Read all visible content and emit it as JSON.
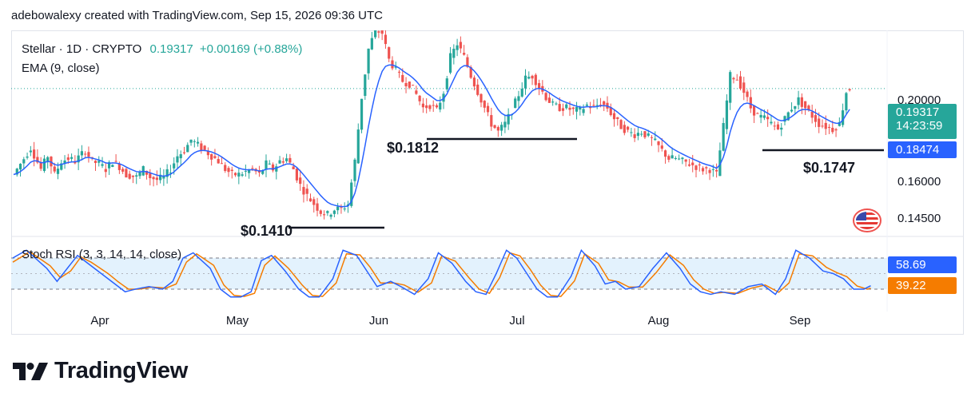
{
  "header": {
    "credit": "adebowalexy created with TradingView.com, Sep 15, 2026 09:36 UTC"
  },
  "legend": {
    "symbol": "Stellar · 1D · CRYPTO",
    "price": "0.19317",
    "change": "+0.00169 (+0.88%)",
    "ema": "EMA (9, close)",
    "stoch": "Stoch RSI (3, 3, 14, 14, close)"
  },
  "colors": {
    "up": "#26a69a",
    "down": "#ef5350",
    "ema": "#2962ff",
    "k_line": "#2962ff",
    "d_line": "#f57c00",
    "tag_ema": "#2962ff",
    "tag_price": "#26a69a",
    "tag_d": "#f57c00",
    "stoch_band": "#e3f2fd"
  },
  "icons": {
    "flag": "us-flag-icon",
    "logo": "tradingview-logo-icon"
  },
  "brand": {
    "name": "TradingView"
  },
  "chart_data": {
    "type": "candlestick",
    "x_labels": [
      "Apr",
      "May",
      "Jun",
      "Jul",
      "Aug",
      "Sep"
    ],
    "y_ticks": [
      "0.20000",
      "0.16000",
      "0.14500"
    ],
    "y_range": [
      0.139,
      0.215
    ],
    "price_tag": {
      "value": "0.19317",
      "countdown": "14:23:59"
    },
    "ema_tag": "0.18474",
    "annotations": [
      "$0.1410",
      "$0.1812",
      "$0.1747"
    ],
    "stoch": {
      "levels": [
        20,
        80
      ],
      "k_value": "58.69",
      "d_value": "39.22",
      "k_anchors": [
        [
          0,
          80
        ],
        [
          4,
          95
        ],
        [
          10,
          60
        ],
        [
          13,
          35
        ],
        [
          16,
          60
        ],
        [
          19,
          85
        ],
        [
          22,
          70
        ],
        [
          27,
          45
        ],
        [
          30,
          30
        ],
        [
          33,
          15
        ],
        [
          36,
          20
        ],
        [
          40,
          25
        ],
        [
          44,
          20
        ],
        [
          47,
          35
        ],
        [
          50,
          80
        ],
        [
          53,
          90
        ],
        [
          58,
          60
        ],
        [
          61,
          20
        ],
        [
          64,
          5
        ],
        [
          67,
          5
        ],
        [
          70,
          15
        ],
        [
          73,
          75
        ],
        [
          76,
          85
        ],
        [
          80,
          55
        ],
        [
          84,
          20
        ],
        [
          87,
          5
        ],
        [
          90,
          5
        ],
        [
          94,
          40
        ],
        [
          97,
          95
        ],
        [
          101,
          85
        ],
        [
          104,
          55
        ],
        [
          107,
          25
        ],
        [
          111,
          35
        ],
        [
          114,
          25
        ],
        [
          118,
          10
        ],
        [
          122,
          40
        ],
        [
          125,
          90
        ],
        [
          129,
          70
        ],
        [
          133,
          35
        ],
        [
          136,
          15
        ],
        [
          139,
          10
        ],
        [
          142,
          50
        ],
        [
          145,
          95
        ],
        [
          148,
          80
        ],
        [
          151,
          50
        ],
        [
          154,
          20
        ],
        [
          157,
          5
        ],
        [
          160,
          5
        ],
        [
          164,
          45
        ],
        [
          167,
          95
        ],
        [
          171,
          65
        ],
        [
          174,
          30
        ],
        [
          177,
          35
        ],
        [
          180,
          20
        ],
        [
          184,
          25
        ],
        [
          188,
          60
        ],
        [
          192,
          90
        ],
        [
          196,
          60
        ],
        [
          199,
          30
        ],
        [
          202,
          15
        ],
        [
          205,
          10
        ],
        [
          208,
          15
        ],
        [
          212,
          10
        ],
        [
          216,
          25
        ],
        [
          220,
          30
        ],
        [
          224,
          10
        ],
        [
          227,
          40
        ],
        [
          230,
          95
        ],
        [
          234,
          80
        ],
        [
          238,
          55
        ],
        [
          241,
          50
        ],
        [
          244,
          40
        ],
        [
          247,
          20
        ],
        [
          250,
          20
        ],
        [
          253,
          30
        ],
        [
          256,
          80
        ],
        [
          259,
          60
        ],
        [
          262,
          15
        ],
        [
          265,
          15
        ],
        [
          268,
          40
        ],
        [
          270,
          58.69
        ]
      ],
      "d_anchors": [
        [
          0,
          72
        ],
        [
          5,
          92
        ],
        [
          11,
          65
        ],
        [
          14,
          42
        ],
        [
          17,
          55
        ],
        [
          20,
          82
        ],
        [
          23,
          72
        ],
        [
          28,
          50
        ],
        [
          31,
          34
        ],
        [
          34,
          20
        ],
        [
          37,
          20
        ],
        [
          41,
          24
        ],
        [
          45,
          22
        ],
        [
          48,
          30
        ],
        [
          51,
          72
        ],
        [
          54,
          88
        ],
        [
          59,
          66
        ],
        [
          62,
          28
        ],
        [
          65,
          8
        ],
        [
          68,
          6
        ],
        [
          71,
          12
        ],
        [
          74,
          66
        ],
        [
          77,
          84
        ],
        [
          81,
          60
        ],
        [
          85,
          28
        ],
        [
          88,
          8
        ],
        [
          91,
          6
        ],
        [
          95,
          32
        ],
        [
          98,
          88
        ],
        [
          102,
          86
        ],
        [
          105,
          62
        ],
        [
          108,
          32
        ],
        [
          112,
          32
        ],
        [
          115,
          28
        ],
        [
          119,
          14
        ],
        [
          123,
          32
        ],
        [
          126,
          84
        ],
        [
          130,
          74
        ],
        [
          134,
          42
        ],
        [
          137,
          20
        ],
        [
          140,
          12
        ],
        [
          143,
          42
        ],
        [
          146,
          90
        ],
        [
          149,
          84
        ],
        [
          152,
          58
        ],
        [
          155,
          28
        ],
        [
          158,
          8
        ],
        [
          161,
          6
        ],
        [
          165,
          36
        ],
        [
          168,
          88
        ],
        [
          172,
          70
        ],
        [
          175,
          38
        ],
        [
          178,
          34
        ],
        [
          181,
          24
        ],
        [
          185,
          24
        ],
        [
          189,
          52
        ],
        [
          193,
          86
        ],
        [
          197,
          66
        ],
        [
          200,
          38
        ],
        [
          203,
          20
        ],
        [
          206,
          12
        ],
        [
          209,
          14
        ],
        [
          213,
          12
        ],
        [
          217,
          22
        ],
        [
          221,
          28
        ],
        [
          225,
          14
        ],
        [
          228,
          32
        ],
        [
          231,
          88
        ],
        [
          235,
          84
        ],
        [
          239,
          62
        ],
        [
          242,
          52
        ],
        [
          245,
          44
        ],
        [
          248,
          26
        ],
        [
          251,
          20
        ],
        [
          254,
          26
        ],
        [
          257,
          70
        ],
        [
          260,
          66
        ],
        [
          263,
          26
        ],
        [
          266,
          16
        ],
        [
          268,
          28
        ],
        [
          270,
          39.22
        ]
      ]
    },
    "close_anchors": [
      [
        0,
        0.161
      ],
      [
        2,
        0.165
      ],
      [
        5,
        0.171
      ],
      [
        8,
        0.163
      ],
      [
        10,
        0.168
      ],
      [
        12,
        0.161
      ],
      [
        14,
        0.166
      ],
      [
        16,
        0.167
      ],
      [
        18,
        0.166
      ],
      [
        21,
        0.17
      ],
      [
        23,
        0.166
      ],
      [
        25,
        0.165
      ],
      [
        27,
        0.163
      ],
      [
        29,
        0.166
      ],
      [
        31,
        0.164
      ],
      [
        33,
        0.161
      ],
      [
        36,
        0.16
      ],
      [
        38,
        0.163
      ],
      [
        40,
        0.16
      ],
      [
        42,
        0.159
      ],
      [
        44,
        0.16
      ],
      [
        46,
        0.163
      ],
      [
        48,
        0.168
      ],
      [
        50,
        0.17
      ],
      [
        52,
        0.174
      ],
      [
        54,
        0.172
      ],
      [
        56,
        0.17
      ],
      [
        58,
        0.168
      ],
      [
        60,
        0.166
      ],
      [
        62,
        0.163
      ],
      [
        64,
        0.161
      ],
      [
        66,
        0.161
      ],
      [
        68,
        0.162
      ],
      [
        70,
        0.163
      ],
      [
        72,
        0.161
      ],
      [
        74,
        0.165
      ],
      [
        76,
        0.163
      ],
      [
        78,
        0.166
      ],
      [
        80,
        0.167
      ],
      [
        82,
        0.163
      ],
      [
        84,
        0.157
      ],
      [
        86,
        0.153
      ],
      [
        88,
        0.15
      ],
      [
        90,
        0.147
      ],
      [
        92,
        0.146
      ],
      [
        94,
        0.148
      ],
      [
        96,
        0.148
      ],
      [
        98,
        0.15
      ],
      [
        100,
        0.166
      ],
      [
        102,
        0.19
      ],
      [
        104,
        0.208
      ],
      [
        106,
        0.215
      ],
      [
        108,
        0.214
      ],
      [
        110,
        0.204
      ],
      [
        112,
        0.2
      ],
      [
        114,
        0.196
      ],
      [
        116,
        0.195
      ],
      [
        118,
        0.191
      ],
      [
        120,
        0.186
      ],
      [
        122,
        0.187
      ],
      [
        124,
        0.185
      ],
      [
        126,
        0.192
      ],
      [
        128,
        0.205
      ],
      [
        130,
        0.21
      ],
      [
        132,
        0.205
      ],
      [
        134,
        0.198
      ],
      [
        136,
        0.192
      ],
      [
        138,
        0.186
      ],
      [
        140,
        0.18
      ],
      [
        142,
        0.177
      ],
      [
        144,
        0.18
      ],
      [
        146,
        0.185
      ],
      [
        148,
        0.191
      ],
      [
        150,
        0.197
      ],
      [
        152,
        0.198
      ],
      [
        154,
        0.194
      ],
      [
        156,
        0.19
      ],
      [
        158,
        0.187
      ],
      [
        160,
        0.186
      ],
      [
        162,
        0.186
      ],
      [
        164,
        0.185
      ],
      [
        166,
        0.185
      ],
      [
        168,
        0.187
      ],
      [
        170,
        0.186
      ],
      [
        172,
        0.188
      ],
      [
        174,
        0.186
      ],
      [
        176,
        0.182
      ],
      [
        178,
        0.179
      ],
      [
        180,
        0.177
      ],
      [
        182,
        0.176
      ],
      [
        184,
        0.177
      ],
      [
        186,
        0.175
      ],
      [
        188,
        0.173
      ],
      [
        190,
        0.17
      ],
      [
        192,
        0.167
      ],
      [
        194,
        0.167
      ],
      [
        196,
        0.166
      ],
      [
        198,
        0.165
      ],
      [
        200,
        0.164
      ],
      [
        202,
        0.163
      ],
      [
        204,
        0.163
      ],
      [
        206,
        0.161
      ],
      [
        208,
        0.179
      ],
      [
        210,
        0.198
      ],
      [
        212,
        0.197
      ],
      [
        214,
        0.192
      ],
      [
        216,
        0.186
      ],
      [
        218,
        0.183
      ],
      [
        220,
        0.182
      ],
      [
        222,
        0.18
      ],
      [
        224,
        0.178
      ],
      [
        226,
        0.182
      ],
      [
        228,
        0.186
      ],
      [
        230,
        0.189
      ],
      [
        232,
        0.186
      ],
      [
        234,
        0.183
      ],
      [
        236,
        0.18
      ],
      [
        238,
        0.179
      ],
      [
        240,
        0.178
      ],
      [
        242,
        0.18
      ],
      [
        244,
        0.192
      ],
      [
        245,
        0.1932
      ]
    ]
  }
}
